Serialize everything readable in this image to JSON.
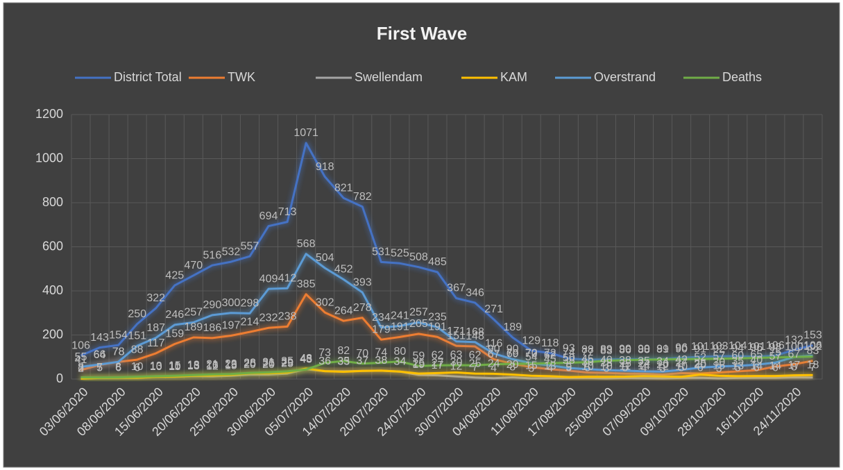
{
  "chart_data": {
    "type": "line",
    "title": "First Wave",
    "categories": [
      "03/06/2020",
      null,
      "08/06/2020",
      null,
      "15/06/2020",
      null,
      "20/06/2020",
      null,
      "25/06/2020",
      null,
      "30/06/2020",
      null,
      "05/07/2020",
      null,
      "14/07/2020",
      null,
      "20/07/2020",
      null,
      "24/07/2020",
      null,
      "30/07/2020",
      null,
      "04/08/2020",
      null,
      "11/08/2020",
      null,
      "17/08/2020",
      null,
      "25/08/2020",
      null,
      "07/09/2020",
      null,
      "09/10/2020",
      null,
      "28/10/2020",
      null,
      "16/11/2020",
      null,
      "24/11/2020",
      null
    ],
    "ylim": [
      0,
      1200
    ],
    "yticks": [
      0,
      200,
      400,
      600,
      800,
      1000,
      1200
    ],
    "grid": true,
    "legend": "top",
    "series": [
      {
        "name": "District Total",
        "color": "#4472c4",
        "values": [
          106,
          143,
          154,
          250,
          322,
          425,
          470,
          516,
          532,
          557,
          694,
          713,
          1071,
          918,
          821,
          782,
          531,
          525,
          508,
          485,
          367,
          346,
          271,
          189,
          129,
          118,
          93,
          88,
          89,
          90,
          90,
          91,
          96,
          101,
          103,
          104,
          101,
          106,
          132,
          153
        ]
      },
      {
        "name": "TWK",
        "color": "#ed7d31",
        "values": [
          41,
          64,
          78,
          88,
          117,
          159,
          189,
          186,
          197,
          214,
          232,
          238,
          385,
          302,
          264,
          278,
          179,
          191,
          205,
          191,
          151,
          148,
          90,
          70,
          54,
          45,
          38,
          30,
          28,
          25,
          24,
          20,
          27,
          25,
          30,
          35,
          40,
          57,
          67,
          83
        ]
      },
      {
        "name": "Swellendam",
        "color": "#a5a5a5",
        "values": [
          3,
          5,
          6,
          6,
          10,
          10,
          13,
          12,
          15,
          20,
          20,
          25,
          45,
          36,
          35,
          37,
          38,
          34,
          19,
          17,
          12,
          7,
          4,
          8,
          3,
          4,
          5,
          5,
          3,
          5,
          4,
          3,
          5,
          6,
          3,
          5,
          6,
          6,
          8,
          7
        ]
      },
      {
        "name": "KAM",
        "color": "#ffc000",
        "values": [
          2,
          5,
          6,
          6,
          10,
          11,
          15,
          16,
          19,
          26,
          26,
          29,
          48,
          36,
          33,
          37,
          38,
          34,
          25,
          27,
          30,
          25,
          24,
          20,
          15,
          13,
          9,
          10,
          10,
          11,
          14,
          12,
          10,
          20,
          15,
          13,
          14,
          14,
          17,
          18
        ]
      },
      {
        "name": "Overstrand",
        "color": "#5b9bd5",
        "values": [
          55,
          66,
          78,
          151,
          187,
          246,
          257,
          290,
          300,
          298,
          409,
          412,
          568,
          504,
          452,
          393,
          234,
          241,
          257,
          235,
          171,
          168,
          116,
          90,
          72,
          62,
          50,
          45,
          40,
          38,
          35,
          34,
          42,
          52,
          57,
          60,
          65,
          75,
          100,
          106
        ]
      },
      {
        "name": "Deaths",
        "color": "#70ad47",
        "values": [
          8,
          7,
          8,
          10,
          13,
          15,
          18,
          21,
          23,
          28,
          31,
          35,
          43,
          73,
          82,
          70,
          74,
          80,
          59,
          62,
          63,
          62,
          67,
          69,
          70,
          72,
          74,
          77,
          83,
          86,
          88,
          89,
          90,
          91,
          92,
          94,
          96,
          98,
          100,
          102
        ]
      }
    ]
  }
}
